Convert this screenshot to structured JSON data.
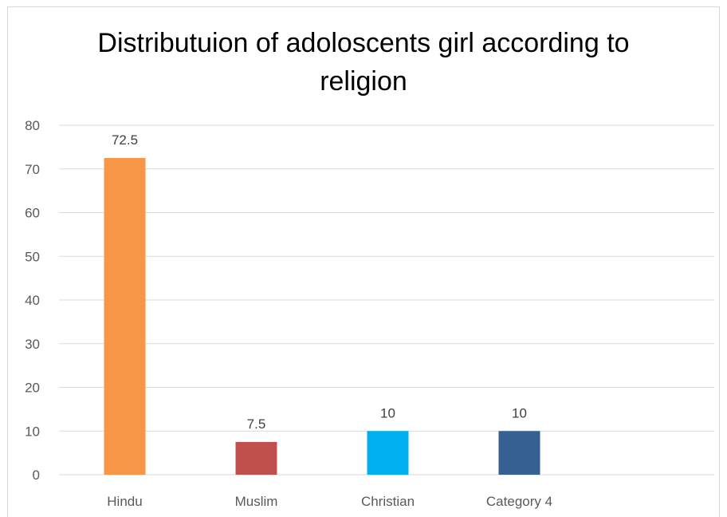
{
  "chart_data": {
    "type": "bar",
    "title": "Distributuion of adoloscents girl according to\nreligion",
    "categories": [
      "Hindu",
      "Muslim",
      "Christian",
      "Category 4"
    ],
    "values": [
      72.5,
      7.5,
      10,
      10
    ],
    "data_labels": [
      "72.5",
      "7.5",
      "10",
      "10"
    ],
    "bar_colors": [
      "#f79646",
      "#c0504d",
      "#00b0f0",
      "#366092"
    ],
    "ylim": [
      0,
      80
    ],
    "yticks": [
      0,
      10,
      20,
      30,
      40,
      50,
      60,
      70,
      80
    ],
    "grid": true,
    "legend": "none",
    "xlabel": "",
    "ylabel": ""
  }
}
